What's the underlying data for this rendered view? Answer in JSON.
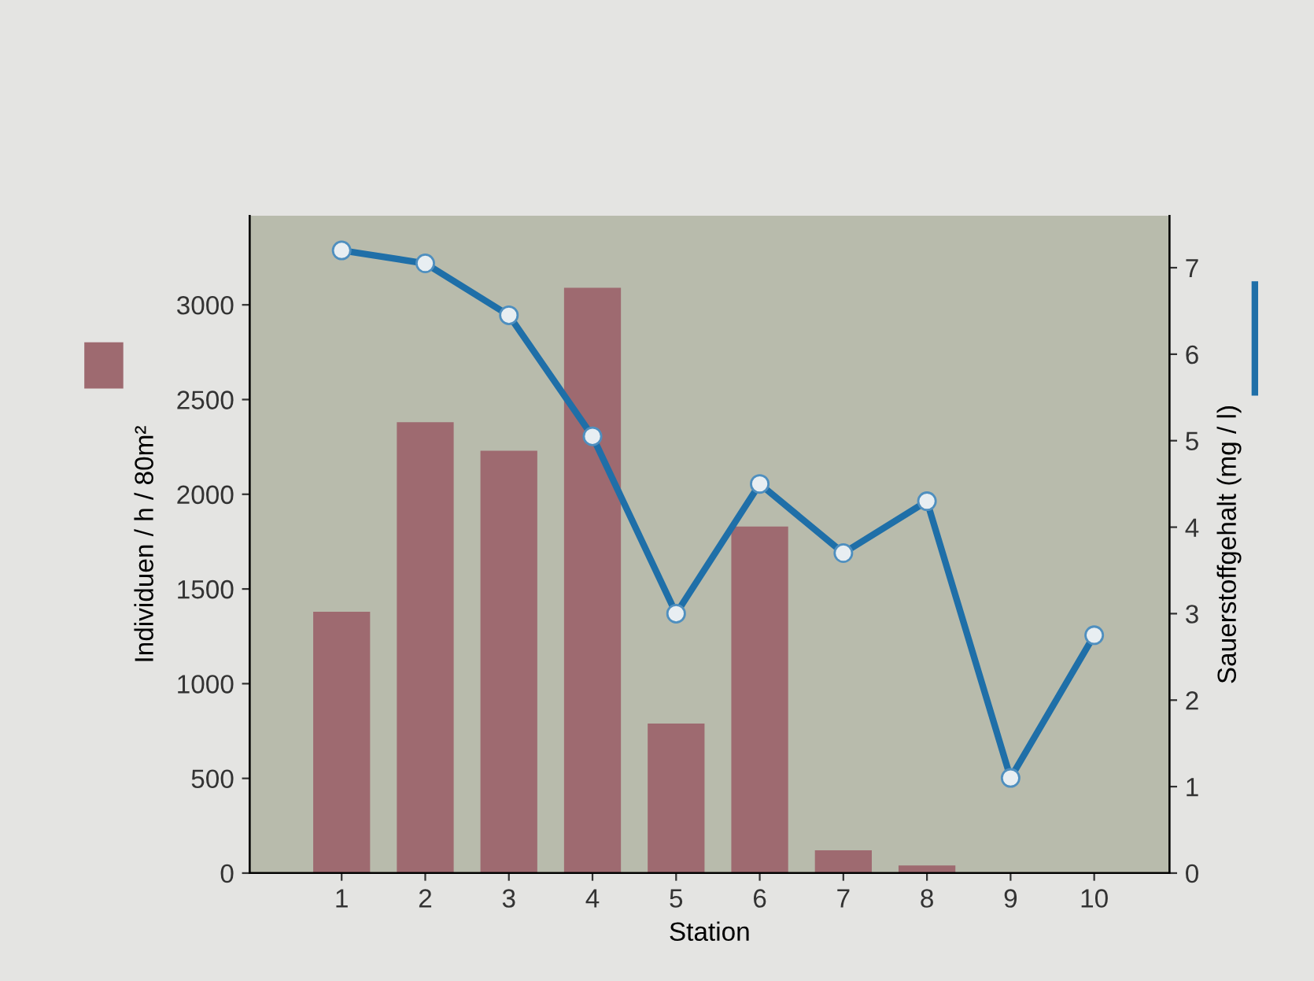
{
  "chart_data": {
    "type": "bar",
    "xlabel": "Station",
    "ylabel": "Individuen / h / 80m²",
    "y2label": "Sauerstoffgehalt (mg / l)",
    "categories": [
      "1",
      "2",
      "3",
      "4",
      "5",
      "6",
      "7",
      "8",
      "9",
      "10"
    ],
    "series": [
      {
        "color": "#9e6a70",
        "values": [
          1380,
          2380,
          2230,
          3090,
          790,
          1830,
          120,
          40,
          0,
          0
        ]
      },
      {
        "type": "line",
        "axis": "y2",
        "color": "#1f6fa8",
        "marker": "circle",
        "values": [
          7.2,
          7.05,
          6.45,
          5.05,
          3.0,
          4.5,
          3.7,
          4.3,
          1.1,
          2.75
        ]
      }
    ],
    "ylim": [
      0,
      3470
    ],
    "yticks": [
      0,
      500,
      1000,
      1500,
      2000,
      2500,
      3000
    ],
    "y2lim": [
      0,
      7.6
    ],
    "y2ticks": [
      0,
      1,
      2,
      3,
      4,
      5,
      6,
      7
    ],
    "grid": false,
    "legend": false
  }
}
